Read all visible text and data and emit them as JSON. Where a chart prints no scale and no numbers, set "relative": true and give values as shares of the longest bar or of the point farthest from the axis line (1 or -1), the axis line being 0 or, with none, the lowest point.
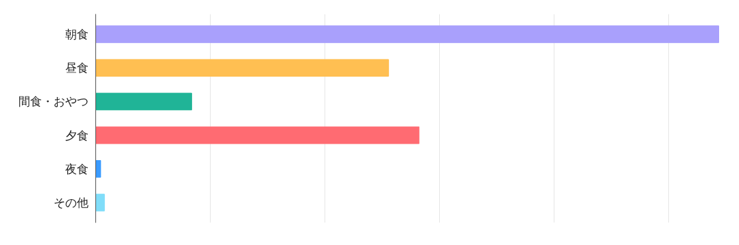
{
  "chart_data": {
    "type": "bar",
    "orientation": "horizontal",
    "relative": true,
    "grid": "x",
    "categories": [
      "朝食",
      "昼食",
      "間食・おやつ",
      "夕食",
      "夜食",
      "その他"
    ],
    "values": [
      1,
      0.47,
      0.154,
      0.519,
      0.008,
      0.014
    ],
    "colors": [
      "#a9a0fc",
      "#ffbf52",
      "#20b497",
      "#ff6b72",
      "#3a9bff",
      "#80ddf9"
    ],
    "tick_labels": "y"
  }
}
